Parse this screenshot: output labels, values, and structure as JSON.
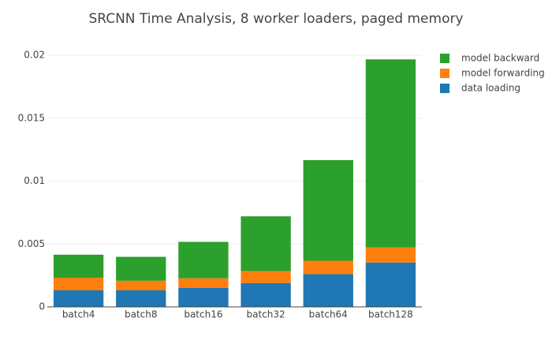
{
  "chart_data": {
    "type": "stacked-bar",
    "title": "SRCNN Time Analysis, 8 worker loaders, paged memory",
    "categories": [
      "batch4",
      "batch8",
      "batch16",
      "batch32",
      "batch64",
      "batch128"
    ],
    "series": [
      {
        "name": "data loading",
        "color": "#1f77b4",
        "values": [
          0.00132,
          0.00132,
          0.00151,
          0.0019,
          0.0026,
          0.00353
        ]
      },
      {
        "name": "model forwarding",
        "color": "#ff7f0e",
        "values": [
          0.001,
          0.00076,
          0.00076,
          0.00095,
          0.00107,
          0.0012
        ]
      },
      {
        "name": "model backward",
        "color": "#2ca02c",
        "values": [
          0.00183,
          0.0019,
          0.0029,
          0.00435,
          0.008,
          0.01495
        ]
      }
    ],
    "ylim": [
      0,
      0.0207
    ],
    "yticks": [
      0,
      0.005,
      0.01,
      0.015,
      0.02
    ],
    "grid": true,
    "legend": "top-right"
  }
}
